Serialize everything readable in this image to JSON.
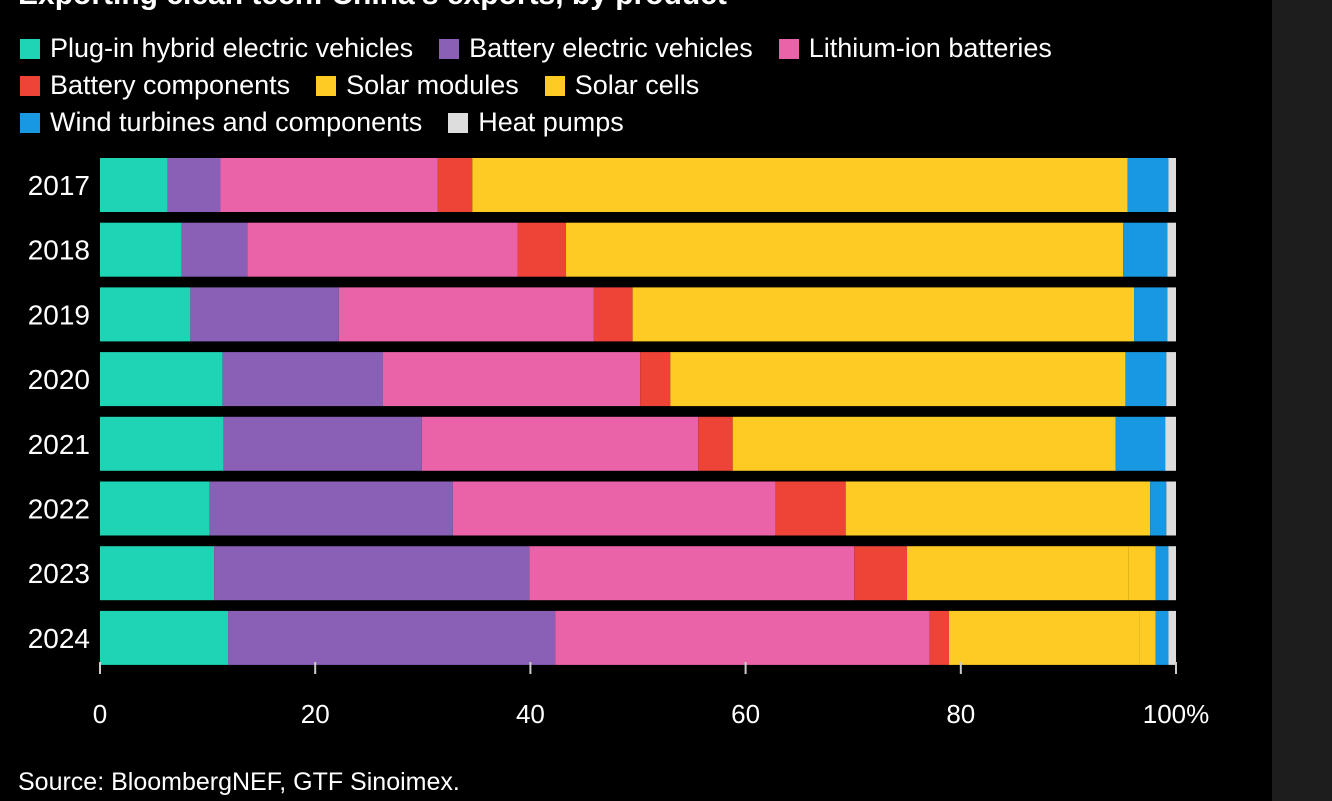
{
  "chart_title": "Exporting clean tech: China's exports, by product",
  "source": "Source: BloombergNEF, GTF Sinoimex.",
  "colors": {
    "background": "#000000",
    "text": "#ffffff",
    "axis": "#cccccc"
  },
  "chart_data": {
    "type": "bar",
    "orientation": "horizontal",
    "stacked": true,
    "percent": true,
    "categories": [
      "2017",
      "2018",
      "2019",
      "2020",
      "2021",
      "2022",
      "2023",
      "2024"
    ],
    "series": [
      {
        "name": "Plug-in hybrid electric vehicles",
        "color": "#1fd4b4",
        "values": [
          6.3,
          7.6,
          8.4,
          11.4,
          11.5,
          10.2,
          10.6,
          11.9
        ]
      },
      {
        "name": "Battery electric vehicles",
        "color": "#8a5fb6",
        "values": [
          4.9,
          6.1,
          13.8,
          14.9,
          18.4,
          22.6,
          29.3,
          30.4
        ]
      },
      {
        "name": "Lithium-ion batteries",
        "color": "#ea63a8",
        "values": [
          20.2,
          25.1,
          23.7,
          23.9,
          25.7,
          30.0,
          30.2,
          34.8
        ]
      },
      {
        "name": "Battery components",
        "color": "#ee4337",
        "values": [
          3.2,
          4.5,
          3.6,
          2.8,
          3.2,
          6.5,
          4.9,
          1.8
        ]
      },
      {
        "name": "Solar modules",
        "color": "#fecb24",
        "values": [
          60.9,
          51.8,
          46.6,
          42.3,
          35.6,
          28.3,
          20.6,
          17.7
        ]
      },
      {
        "name": "Solar cells",
        "color": "#fecb24",
        "values": [
          0.0,
          0.0,
          0.0,
          0.0,
          0.0,
          0.0,
          2.5,
          1.5
        ]
      },
      {
        "name": "Wind turbines and components",
        "color": "#1898e0",
        "values": [
          3.8,
          4.1,
          3.1,
          3.8,
          4.6,
          1.5,
          1.2,
          1.2
        ]
      },
      {
        "name": "Heat pumps",
        "color": "#dddddd",
        "values": [
          0.7,
          0.8,
          0.8,
          0.9,
          1.0,
          0.9,
          0.7,
          0.7
        ]
      }
    ],
    "x_ticks": [
      "0",
      "20",
      "40",
      "60",
      "80",
      "100%"
    ],
    "xlim": [
      0,
      100
    ],
    "legend_position": "top"
  }
}
